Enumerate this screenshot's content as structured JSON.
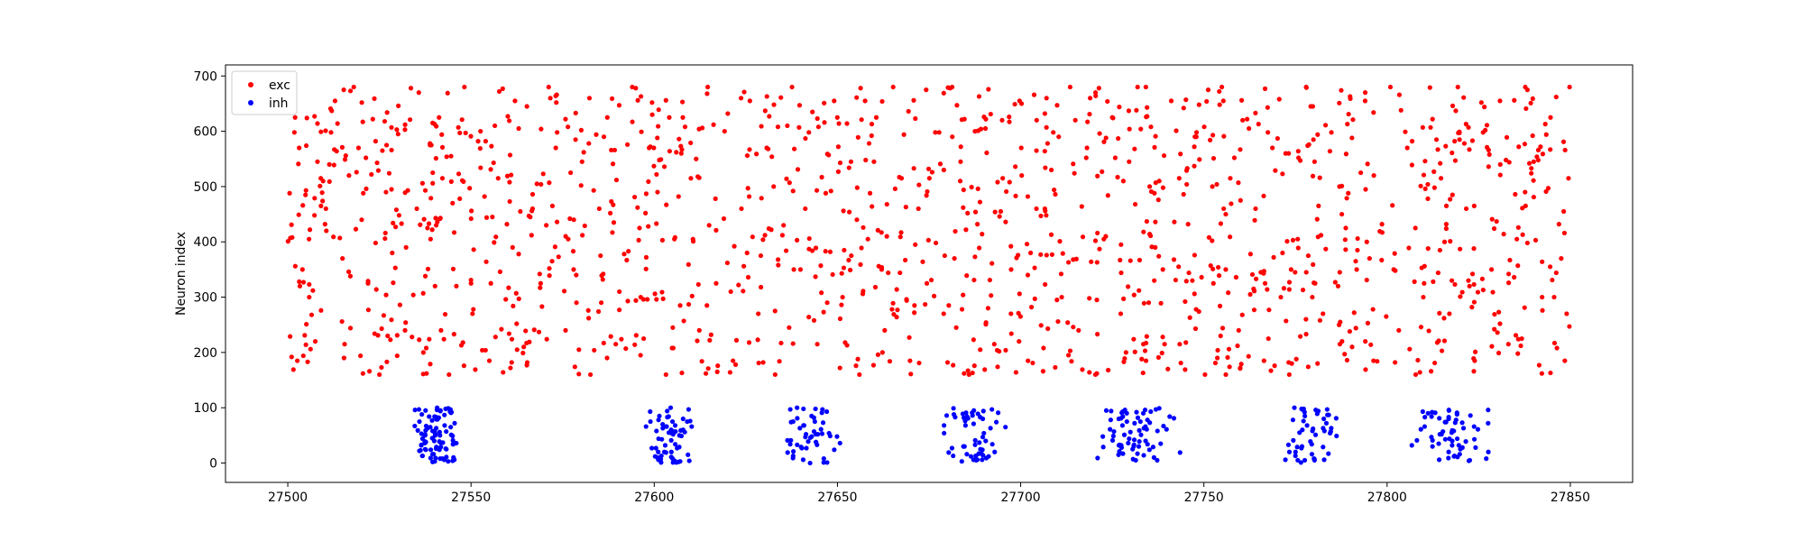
{
  "chart_data": {
    "type": "scatter",
    "title": "",
    "xlabel": "",
    "ylabel": "Neuron index",
    "xlim": [
      27483,
      27867
    ],
    "ylim": [
      -35,
      720
    ],
    "xticks": [
      27500,
      27550,
      27600,
      27650,
      27700,
      27750,
      27800,
      27850
    ],
    "yticks": [
      0,
      100,
      200,
      300,
      400,
      500,
      600,
      700
    ],
    "grid": false,
    "legend": {
      "placement": "top-left"
    },
    "series": [
      {
        "name": "exc",
        "color": "#ff0000",
        "neuron_range": [
          160,
          680
        ],
        "time_range": [
          27500,
          27850
        ],
        "points": [
          [
            27500.5,
            488
          ],
          [
            27501.2,
            408
          ],
          [
            27501.8,
            598
          ],
          [
            27502.0,
            625
          ],
          [
            27502.6,
            185
          ],
          [
            27503.1,
            570
          ],
          [
            27504.0,
            350
          ],
          [
            27505.2,
            624
          ],
          [
            27505.8,
            405
          ],
          [
            27506.5,
            268
          ],
          [
            27507.3,
            627
          ],
          [
            27508.1,
            545
          ],
          [
            27509.0,
            515
          ],
          [
            27510.4,
            460
          ],
          [
            27511.8,
            598
          ],
          [
            27512.9,
            655
          ],
          [
            27514.2,
            407
          ],
          [
            27515.5,
            215
          ],
          [
            27516.7,
            520
          ],
          [
            27518.0,
            680
          ],
          [
            27519.3,
            570
          ],
          [
            27520.6,
            488
          ],
          [
            27521.9,
            325
          ],
          [
            27523.2,
            622
          ],
          [
            27525.0,
            160
          ],
          [
            27526.8,
            490
          ],
          [
            27528.5,
            380
          ],
          [
            27530.1,
            595
          ],
          [
            27532.0,
            240
          ],
          [
            27533.6,
            678
          ],
          [
            27535.2,
            460
          ],
          [
            27537.0,
            200
          ],
          [
            27538.8,
            578
          ],
          [
            27540.5,
            430
          ],
          [
            27542.2,
            515
          ],
          [
            27544.0,
            160
          ],
          [
            27546.0,
            320
          ],
          [
            27548.2,
            680
          ],
          [
            27550.4,
            270
          ],
          [
            27552.6,
            600
          ],
          [
            27555.0,
            185
          ],
          [
            27557.4,
            515
          ],
          [
            27559.8,
            432
          ],
          [
            27562.0,
            655
          ],
          [
            27564.4,
            210
          ],
          [
            27566.8,
            460
          ],
          [
            27569.0,
            325
          ],
          [
            27571.2,
            680
          ],
          [
            27573.5,
            598
          ],
          [
            27575.8,
            240
          ],
          [
            27578.0,
            350
          ],
          [
            27580.3,
            545
          ],
          [
            27582.6,
            160
          ],
          [
            27585.0,
            460
          ],
          [
            27587.2,
            625
          ],
          [
            27589.5,
            215
          ],
          [
            27591.8,
            378
          ],
          [
            27594.0,
            680
          ],
          [
            27596.3,
            300
          ],
          [
            27598.6,
            570
          ],
          [
            27600.9,
            490
          ],
          [
            27603.2,
            160
          ],
          [
            27605.5,
            405
          ],
          [
            27607.8,
            625
          ],
          [
            27610.0,
            515
          ],
          [
            27612.3,
            240
          ],
          [
            27614.6,
            680
          ],
          [
            27616.9,
            325
          ],
          [
            27619.2,
            600
          ],
          [
            27621.5,
            185
          ],
          [
            27623.8,
            460
          ],
          [
            27626.1,
            655
          ],
          [
            27628.4,
            270
          ],
          [
            27630.7,
            570
          ],
          [
            27633.0,
            160
          ],
          [
            27635.3,
            430
          ],
          [
            27637.6,
            680
          ],
          [
            27639.9,
            350
          ],
          [
            27642.2,
            598
          ],
          [
            27644.5,
            215
          ],
          [
            27646.8,
            488
          ],
          [
            27649.1,
            655
          ],
          [
            27651.4,
            300
          ],
          [
            27653.7,
            545
          ],
          [
            27656.0,
            160
          ],
          [
            27658.3,
            405
          ],
          [
            27660.6,
            625
          ],
          [
            27662.9,
            240
          ],
          [
            27665.2,
            680
          ],
          [
            27667.5,
            515
          ],
          [
            27669.8,
            185
          ],
          [
            27672.1,
            460
          ],
          [
            27674.4,
            325
          ],
          [
            27676.7,
            598
          ],
          [
            27679.0,
            270
          ],
          [
            27681.3,
            680
          ],
          [
            27683.6,
            545
          ],
          [
            27685.9,
            160
          ],
          [
            27688.2,
            432
          ],
          [
            27690.5,
            622
          ],
          [
            27692.8,
            215
          ],
          [
            27695.1,
            515
          ],
          [
            27697.4,
            350
          ],
          [
            27699.7,
            655
          ],
          [
            27702.0,
            185
          ],
          [
            27704.3,
            460
          ],
          [
            27706.6,
            460
          ],
          [
            27708.9,
            598
          ],
          [
            27711.2,
            300
          ],
          [
            27713.5,
            680
          ],
          [
            27715.8,
            240
          ],
          [
            27718.1,
            570
          ],
          [
            27720.4,
            160
          ],
          [
            27722.7,
            405
          ],
          [
            27725.0,
            625
          ],
          [
            27727.3,
            270
          ],
          [
            27729.6,
            545
          ],
          [
            27731.9,
            680
          ],
          [
            27734.2,
            185
          ],
          [
            27736.5,
            488
          ],
          [
            27738.8,
            350
          ],
          [
            27741.1,
            655
          ],
          [
            27743.4,
            215
          ],
          [
            27745.7,
            432
          ],
          [
            27748.0,
            598
          ],
          [
            27750.3,
            160
          ],
          [
            27752.6,
            325
          ],
          [
            27754.9,
            680
          ],
          [
            27757.2,
            515
          ],
          [
            27759.5,
            240
          ],
          [
            27761.8,
            622
          ],
          [
            27764.1,
            460
          ],
          [
            27766.4,
            185
          ],
          [
            27768.7,
            570
          ],
          [
            27771.0,
            300
          ],
          [
            27773.3,
            160
          ],
          [
            27775.6,
            405
          ],
          [
            27777.9,
            680
          ],
          [
            27780.2,
            545
          ],
          [
            27782.5,
            270
          ],
          [
            27784.8,
            598
          ],
          [
            27787.1,
            215
          ],
          [
            27789.4,
            488
          ],
          [
            27791.7,
            350
          ],
          [
            27794.0,
            655
          ],
          [
            27796.3,
            185
          ],
          [
            27798.6,
            432
          ],
          [
            27800.9,
            680
          ],
          [
            27803.2,
            240
          ],
          [
            27805.5,
            570
          ],
          [
            27807.8,
            160
          ],
          [
            27810.1,
            325
          ],
          [
            27812.4,
            622
          ],
          [
            27814.7,
            515
          ],
          [
            27817.0,
            270
          ],
          [
            27819.3,
            680
          ],
          [
            27821.6,
            460
          ],
          [
            27823.9,
            185
          ],
          [
            27826.2,
            598
          ],
          [
            27828.5,
            350
          ],
          [
            27830.8,
            655
          ],
          [
            27833.1,
            215
          ],
          [
            27835.4,
            405
          ],
          [
            27837.7,
            680
          ],
          [
            27840.0,
            545
          ],
          [
            27842.3,
            300
          ],
          [
            27844.6,
            625
          ],
          [
            27846.9,
            432
          ],
          [
            27848.5,
            185
          ],
          [
            27849.5,
            515
          ],
          [
            27849.8,
            680
          ],
          [
            27849.0,
            270
          ]
        ]
      },
      {
        "name": "inh",
        "color": "#0000ff",
        "neuron_range": [
          0,
          100
        ],
        "bursts": [
          {
            "t_min": 27532,
            "t_max": 27547,
            "count": 90
          },
          {
            "t_min": 27596,
            "t_max": 27611,
            "count": 60
          },
          {
            "t_min": 27632,
            "t_max": 27653,
            "count": 50
          },
          {
            "t_min": 27677,
            "t_max": 27698,
            "count": 55
          },
          {
            "t_min": 27719,
            "t_max": 27745,
            "count": 70
          },
          {
            "t_min": 27770,
            "t_max": 27788,
            "count": 50
          },
          {
            "t_min": 27805,
            "t_max": 27830,
            "count": 60
          }
        ]
      }
    ]
  }
}
